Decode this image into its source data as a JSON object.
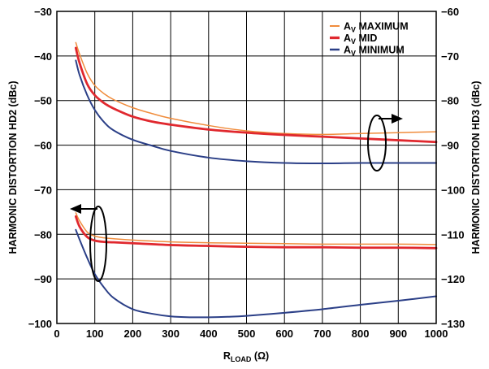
{
  "chart_data": {
    "type": "line",
    "xlabel": "R",
    "xlabel_sub": "LOAD",
    "xlabel_unit": " (Ω)",
    "ylabel_left": "HARMONIC DISTORTION HD2 (dBc)",
    "ylabel_right": "HARMONIC DISTORTION HD3 (dBc)",
    "xlim": [
      0,
      1000
    ],
    "ylim_left": [
      -100,
      -30
    ],
    "ylim_right": [
      -130,
      -60
    ],
    "x_ticks": [
      "0",
      "100",
      "200",
      "300",
      "400",
      "500",
      "600",
      "700",
      "800",
      "900",
      "1000"
    ],
    "y_left_ticks": [
      "−30",
      "−40",
      "−50",
      "−60",
      "−70",
      "−80",
      "−90",
      "−100"
    ],
    "y_right_ticks": [
      "−60",
      "−70",
      "−80",
      "−90",
      "−100",
      "−110",
      "−120",
      "−130"
    ],
    "grid": true,
    "legend_position": "top-right",
    "legend": [
      {
        "main": "A",
        "sub": "V",
        "rest": " MAXIMUM",
        "color": "#F08C3C"
      },
      {
        "main": "A",
        "sub": "V",
        "rest": " MID",
        "color": "#E0282E"
      },
      {
        "main": "A",
        "sub": "V",
        "rest": " MINIMUM",
        "color": "#2B3F87"
      }
    ],
    "series": [
      {
        "group": "HD3",
        "axis": "right",
        "legend_index": 0,
        "color": "#F08C3C",
        "width": 1.5,
        "x": [
          50,
          60,
          80,
          100,
          125,
          150,
          200,
          250,
          300,
          400,
          500,
          600,
          700,
          800,
          900,
          1000
        ],
        "values": [
          -67,
          -69.6,
          -73.9,
          -76.6,
          -78.5,
          -79.8,
          -81.6,
          -82.9,
          -84.0,
          -85.6,
          -86.8,
          -87.4,
          -87.6,
          -87.4,
          -87.2,
          -87.0
        ]
      },
      {
        "group": "HD3",
        "axis": "right",
        "legend_index": 1,
        "color": "#E0282E",
        "width": 2.8,
        "x": [
          50,
          60,
          80,
          100,
          125,
          150,
          200,
          250,
          300,
          400,
          500,
          600,
          700,
          800,
          900,
          1000
        ],
        "values": [
          -68.2,
          -71.6,
          -76.3,
          -78.8,
          -80.6,
          -81.8,
          -83.6,
          -84.7,
          -85.4,
          -86.5,
          -87.2,
          -87.7,
          -88.1,
          -88.5,
          -88.9,
          -89.3
        ]
      },
      {
        "group": "HD3",
        "axis": "right",
        "legend_index": 2,
        "color": "#2B3F87",
        "width": 2.0,
        "x": [
          50,
          60,
          80,
          100,
          125,
          150,
          200,
          250,
          300,
          400,
          500,
          600,
          700,
          800,
          900,
          1000
        ],
        "values": [
          -71,
          -74.3,
          -78.8,
          -82.1,
          -84.9,
          -86.7,
          -88.8,
          -90.1,
          -91.3,
          -92.8,
          -93.6,
          -94.0,
          -94.1,
          -94.0,
          -94.0,
          -94.0
        ]
      },
      {
        "group": "HD2",
        "axis": "left",
        "legend_index": 0,
        "color": "#F08C3C",
        "width": 1.5,
        "x": [
          50,
          60,
          80,
          100,
          125,
          150,
          200,
          300,
          400,
          500,
          600,
          700,
          800,
          900,
          1000
        ],
        "values": [
          -75.2,
          -77.0,
          -79.5,
          -80.4,
          -80.8,
          -81.0,
          -81.3,
          -81.7,
          -81.9,
          -82.0,
          -82.1,
          -82.2,
          -82.2,
          -82.2,
          -82.3
        ]
      },
      {
        "group": "HD2",
        "axis": "left",
        "legend_index": 1,
        "color": "#E0282E",
        "width": 2.8,
        "x": [
          50,
          60,
          80,
          100,
          125,
          150,
          200,
          300,
          400,
          500,
          600,
          700,
          800,
          900,
          1000
        ],
        "values": [
          -76.0,
          -78.3,
          -80.6,
          -81.4,
          -81.7,
          -81.8,
          -82.0,
          -82.4,
          -82.6,
          -82.8,
          -82.9,
          -82.9,
          -83.0,
          -83.0,
          -83.1
        ]
      },
      {
        "group": "HD2",
        "axis": "left",
        "legend_index": 2,
        "color": "#2B3F87",
        "width": 2.0,
        "x": [
          50,
          60,
          80,
          100,
          125,
          150,
          200,
          250,
          300,
          350,
          400,
          450,
          500,
          600,
          700,
          800,
          900,
          1000
        ],
        "values": [
          -79.0,
          -81.2,
          -85.3,
          -88.9,
          -92.0,
          -94.3,
          -96.8,
          -97.8,
          -98.4,
          -98.6,
          -98.6,
          -98.5,
          -98.3,
          -97.6,
          -96.8,
          -95.8,
          -94.9,
          -93.9
        ]
      }
    ]
  }
}
